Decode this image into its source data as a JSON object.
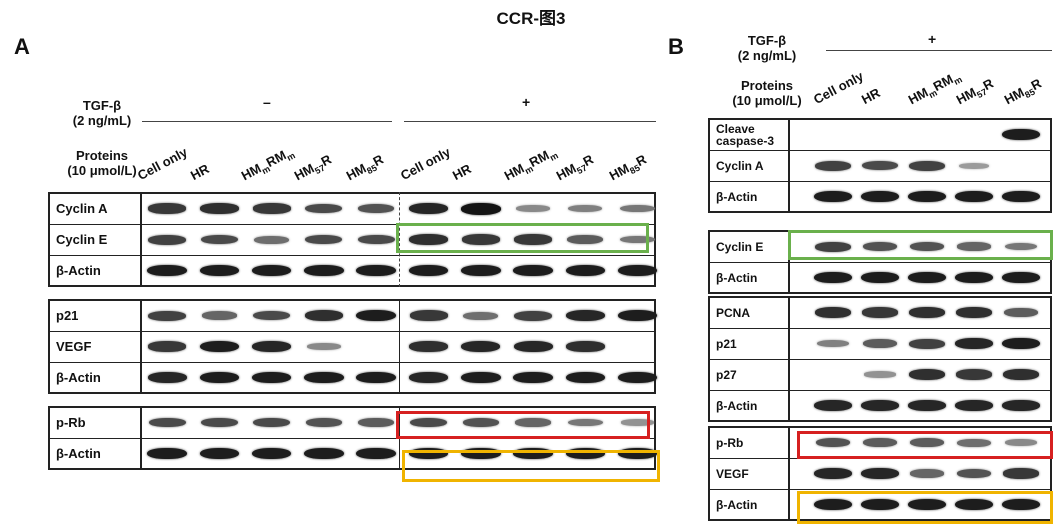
{
  "title": "CCR-图3",
  "panelA": {
    "label": "A",
    "treatment_label": [
      "TGF-β",
      "(2 ng/mL)"
    ],
    "proteins_label": [
      "Proteins",
      "(10 μmol/L)"
    ],
    "minus_sign": "–",
    "plus_sign": "+",
    "lanes": [
      "Cell only",
      "HR",
      "HMmRMm",
      "HM57R",
      "HM85R",
      "Cell only",
      "HR",
      "HMmRMm",
      "HM57R",
      "HM85R"
    ],
    "blots": [
      {
        "rows": [
          {
            "label": "Cyclin A",
            "intensity": [
              0.8,
              0.85,
              0.8,
              0.7,
              0.65,
              0.9,
              1.0,
              0.35,
              0.4,
              0.45
            ]
          },
          {
            "label": "Cyclin E",
            "intensity": [
              0.75,
              0.7,
              0.5,
              0.7,
              0.7,
              0.85,
              0.8,
              0.8,
              0.6,
              0.45
            ]
          },
          {
            "label": "β-Actin",
            "intensity": [
              0.95,
              0.95,
              0.95,
              0.95,
              0.95,
              0.95,
              0.95,
              0.95,
              0.95,
              0.95
            ]
          }
        ]
      },
      {
        "rows": [
          {
            "label": "p21",
            "intensity": [
              0.75,
              0.55,
              0.7,
              0.85,
              0.95,
              0.8,
              0.5,
              0.75,
              0.9,
              0.95
            ]
          },
          {
            "label": "VEGF",
            "intensity": [
              0.8,
              0.95,
              0.9,
              0.35,
              0,
              0.85,
              0.9,
              0.9,
              0.85,
              0
            ]
          },
          {
            "label": "β-Actin",
            "intensity": [
              0.9,
              0.95,
              0.95,
              0.95,
              0.95,
              0.9,
              0.95,
              0.95,
              0.95,
              0.95
            ]
          }
        ]
      },
      {
        "rows": [
          {
            "label": "p-Rb",
            "intensity": [
              0.7,
              0.7,
              0.7,
              0.65,
              0.6,
              0.7,
              0.65,
              0.55,
              0.45,
              0.3
            ]
          },
          {
            "label": "β-Actin",
            "intensity": [
              0.95,
              0.95,
              0.95,
              0.95,
              0.95,
              0.95,
              0.95,
              0.95,
              0.95,
              0.95
            ]
          }
        ]
      }
    ]
  },
  "panelB": {
    "label": "B",
    "treatment_label": [
      "TGF-β",
      "(2 ng/mL)"
    ],
    "proteins_label": [
      "Proteins",
      "(10 μmol/L)"
    ],
    "plus_sign": "+",
    "lanes": [
      "Cell only",
      "HR",
      "HMmRMm",
      "HM57R",
      "HM85R"
    ],
    "blots": [
      {
        "rows": [
          {
            "label": "Cleave caspase-3",
            "intensity": [
              0,
              0,
              0,
              0,
              0.95
            ]
          },
          {
            "label": "Cyclin A",
            "intensity": [
              0.75,
              0.7,
              0.75,
              0.25,
              0
            ]
          },
          {
            "label": "β-Actin",
            "intensity": [
              0.95,
              0.95,
              0.95,
              0.95,
              0.95
            ]
          }
        ]
      },
      {
        "rows": [
          {
            "label": "Cyclin E",
            "intensity": [
              0.75,
              0.65,
              0.65,
              0.55,
              0.45
            ]
          },
          {
            "label": "β-Actin",
            "intensity": [
              0.95,
              0.95,
              0.95,
              0.95,
              0.95
            ]
          }
        ]
      },
      {
        "rows": [
          {
            "label": "PCNA",
            "intensity": [
              0.85,
              0.8,
              0.85,
              0.85,
              0.6
            ]
          },
          {
            "label": "p21",
            "intensity": [
              0.4,
              0.6,
              0.75,
              0.9,
              0.95
            ]
          },
          {
            "label": "p27",
            "intensity": [
              0,
              0.3,
              0.85,
              0.8,
              0.85
            ]
          },
          {
            "label": "β-Actin",
            "intensity": [
              0.9,
              0.9,
              0.9,
              0.9,
              0.9
            ]
          }
        ]
      },
      {
        "rows": [
          {
            "label": "p-Rb",
            "intensity": [
              0.65,
              0.6,
              0.6,
              0.5,
              0.35
            ]
          },
          {
            "label": "VEGF",
            "intensity": [
              0.9,
              0.9,
              0.55,
              0.65,
              0.8
            ]
          },
          {
            "label": "β-Actin",
            "intensity": [
              0.95,
              0.95,
              0.95,
              0.95,
              0.95
            ]
          }
        ]
      }
    ]
  },
  "highlight_colors": {
    "green": "#6ab04c",
    "red": "#d62020",
    "orange": "#f0b400"
  }
}
